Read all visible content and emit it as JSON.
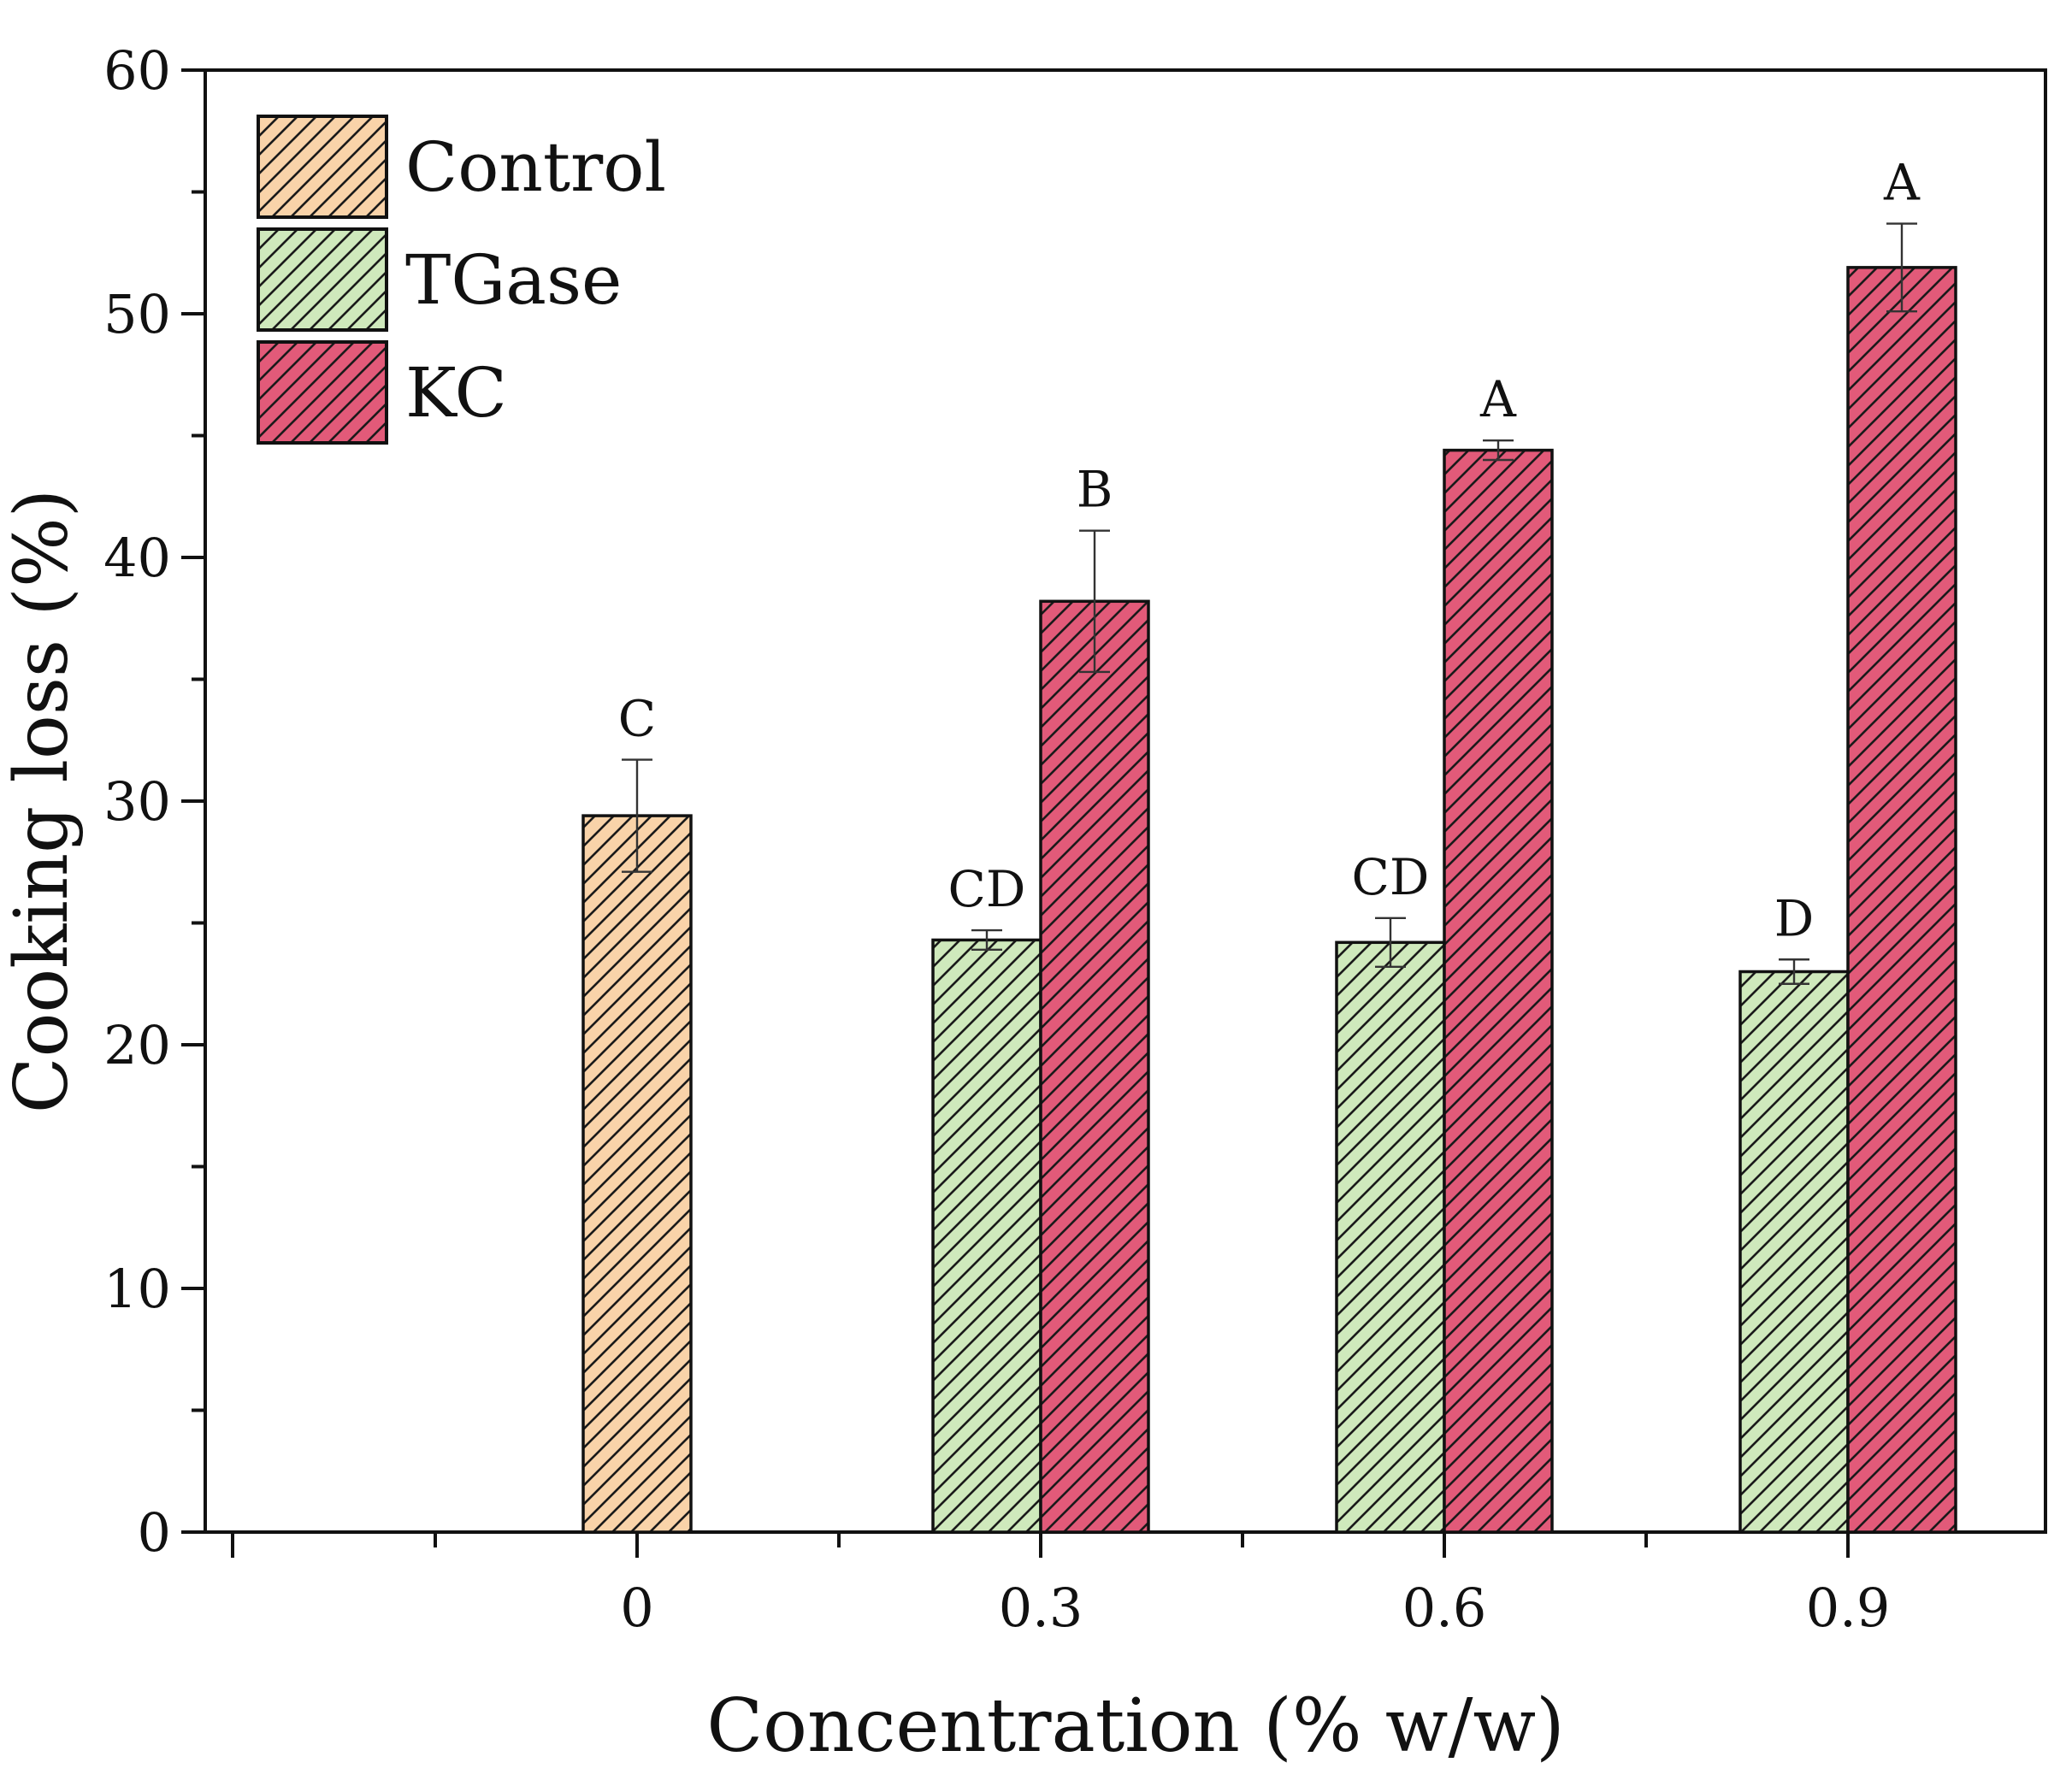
{
  "chart_data": {
    "type": "bar",
    "xlabel": "Concentration (% w/w)",
    "ylabel": "Cooking loss (%)",
    "ylim": [
      0,
      60
    ],
    "y_ticks": [
      "0",
      "10",
      "20",
      "30",
      "40",
      "50",
      "60"
    ],
    "y_minor_step": 5,
    "categories": [
      "0",
      "0.3",
      "0.6",
      "0.9"
    ],
    "legend_position": "top-left",
    "series": [
      {
        "name": "Control",
        "color": "#f9d3a9",
        "values": [
          29.4,
          null,
          null,
          null
        ],
        "errors": [
          2.3,
          null,
          null,
          null
        ],
        "labels": [
          "C",
          null,
          null,
          null
        ]
      },
      {
        "name": "TGase",
        "color": "#cfe9bc",
        "values": [
          null,
          24.3,
          24.2,
          23.0
        ],
        "errors": [
          null,
          0.4,
          1.0,
          0.5
        ],
        "labels": [
          null,
          "CD",
          "CD",
          "D"
        ]
      },
      {
        "name": "KC",
        "color": "#e25a79",
        "values": [
          null,
          38.2,
          44.4,
          51.9
        ],
        "errors": [
          null,
          2.9,
          0.4,
          1.8
        ],
        "labels": [
          null,
          "B",
          "A",
          "A"
        ]
      }
    ]
  }
}
